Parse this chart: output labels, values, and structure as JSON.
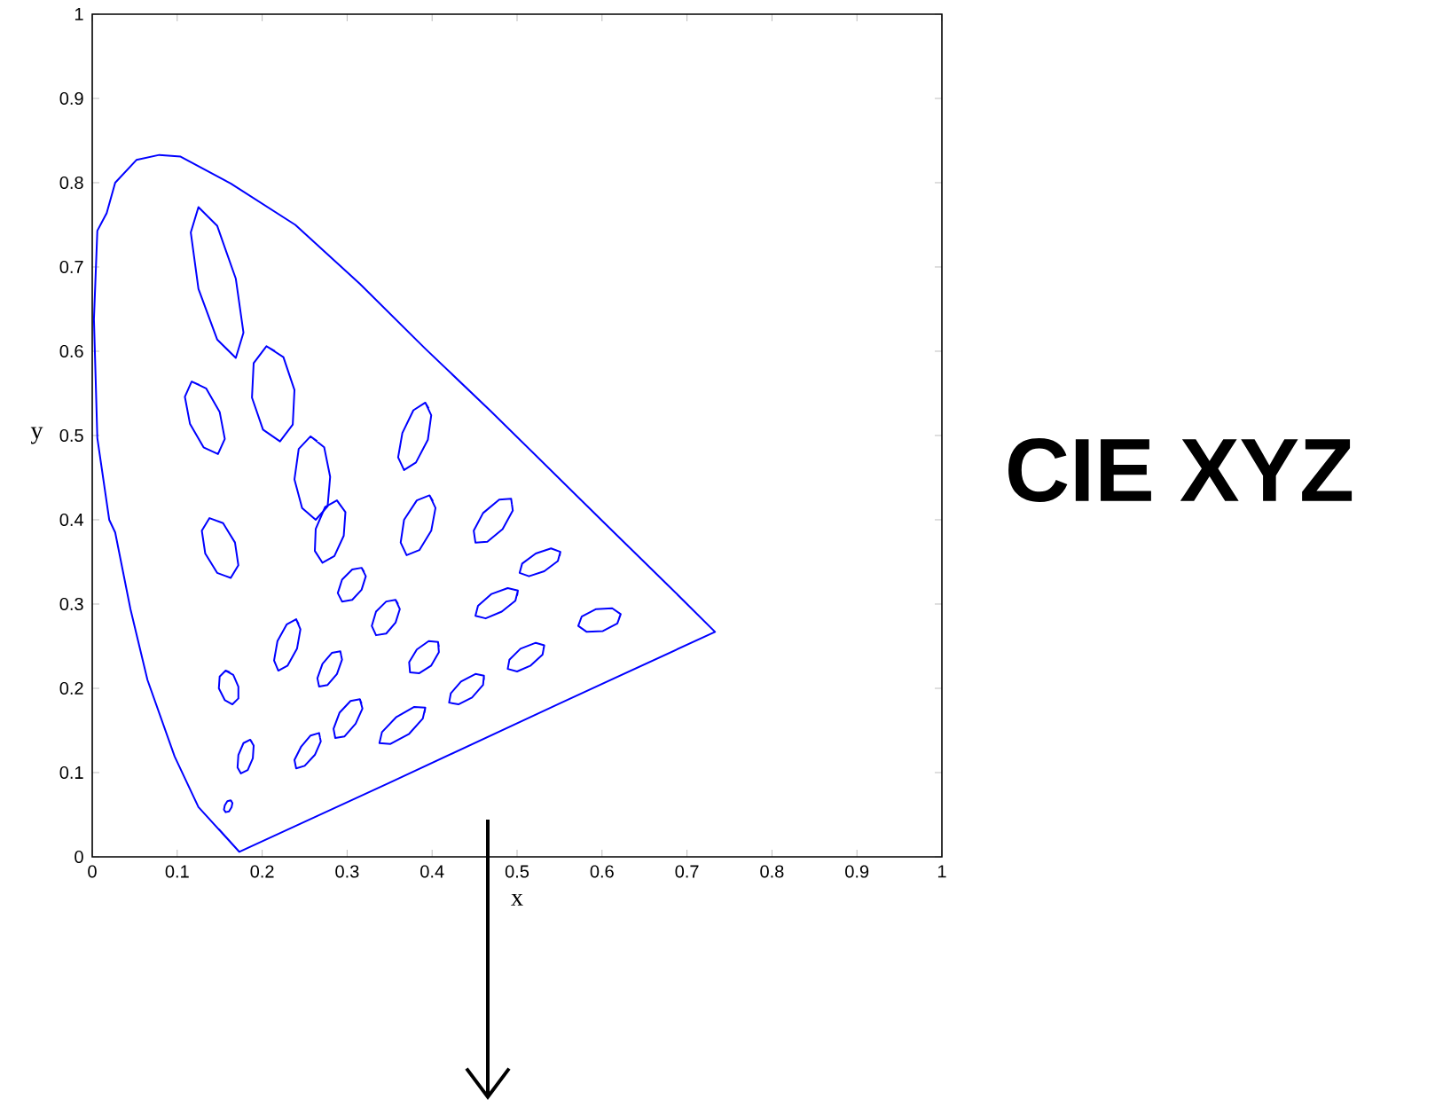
{
  "chart_data": {
    "type": "line",
    "xlabel": "x",
    "ylabel": "y",
    "annotations": [
      "CIE XYZ"
    ],
    "xlim": [
      0,
      1
    ],
    "ylim": [
      0,
      1
    ],
    "xticks": [
      0,
      0.1,
      0.2,
      0.3,
      0.4,
      0.5,
      0.6,
      0.7,
      0.8,
      0.9,
      1
    ],
    "yticks": [
      0,
      0.1,
      0.2,
      0.3,
      0.4,
      0.5,
      0.6,
      0.7,
      0.8,
      0.9,
      1
    ],
    "grid": false,
    "series": [
      {
        "color": "#0000ff",
        "x": [
          0.173,
          0.125,
          0.097,
          0.065,
          0.045,
          0.027,
          0.02,
          0.006,
          0.004,
          0.002,
          0.006,
          0.017,
          0.027,
          0.052,
          0.079,
          0.104,
          0.163,
          0.239,
          0.315,
          0.392,
          0.469,
          0.6,
          0.68,
          0.733,
          0.55,
          0.35,
          0.173,
          0.149
        ],
        "values": [
          0.006,
          0.059,
          0.119,
          0.21,
          0.294,
          0.385,
          0.4,
          0.497,
          0.568,
          0.638,
          0.743,
          0.764,
          0.8,
          0.827,
          0.833,
          0.831,
          0.799,
          0.75,
          0.68,
          0.603,
          0.529,
          0.399,
          0.32,
          0.267,
          0.182,
          0.088,
          0.006,
          0.033
        ]
      },
      {
        "color": "#0000ff",
        "x": [
          0.125,
          0.147,
          0.169,
          0.178,
          0.169,
          0.147,
          0.125,
          0.116,
          0.125,
          0.136
        ],
        "values": [
          0.771,
          0.749,
          0.686,
          0.622,
          0.592,
          0.614,
          0.674,
          0.741,
          0.771,
          0.76
        ]
      },
      {
        "color": "#0000ff",
        "x": [
          0.205,
          0.225,
          0.238,
          0.236,
          0.221,
          0.201,
          0.188,
          0.19,
          0.205,
          0.215
        ],
        "values": [
          0.606,
          0.593,
          0.554,
          0.513,
          0.493,
          0.507,
          0.545,
          0.586,
          0.606,
          0.6
        ]
      },
      {
        "color": "#0000ff",
        "x": [
          0.117,
          0.134,
          0.15,
          0.156,
          0.148,
          0.131,
          0.115,
          0.109,
          0.117,
          0.126
        ],
        "values": [
          0.564,
          0.556,
          0.528,
          0.496,
          0.478,
          0.486,
          0.514,
          0.546,
          0.564,
          0.56
        ]
      },
      {
        "color": "#0000ff",
        "x": [
          0.257,
          0.273,
          0.28,
          0.277,
          0.263,
          0.247,
          0.238,
          0.243,
          0.257,
          0.265
        ],
        "values": [
          0.499,
          0.486,
          0.451,
          0.416,
          0.4,
          0.414,
          0.448,
          0.484,
          0.499,
          0.493
        ]
      },
      {
        "color": "#0000ff",
        "x": [
          0.288,
          0.298,
          0.296,
          0.285,
          0.271,
          0.262,
          0.263,
          0.274,
          0.288,
          0.293
        ],
        "values": [
          0.423,
          0.409,
          0.381,
          0.357,
          0.349,
          0.363,
          0.389,
          0.415,
          0.423,
          0.416
        ]
      },
      {
        "color": "#0000ff",
        "x": [
          0.392,
          0.399,
          0.395,
          0.381,
          0.367,
          0.36,
          0.365,
          0.378,
          0.392,
          0.396
        ],
        "values": [
          0.539,
          0.524,
          0.495,
          0.468,
          0.459,
          0.474,
          0.503,
          0.53,
          0.539,
          0.532
        ]
      },
      {
        "color": "#0000ff",
        "x": [
          0.397,
          0.404,
          0.399,
          0.385,
          0.37,
          0.363,
          0.367,
          0.382,
          0.397,
          0.401
        ],
        "values": [
          0.429,
          0.414,
          0.387,
          0.364,
          0.358,
          0.373,
          0.4,
          0.423,
          0.429,
          0.422
        ]
      },
      {
        "color": "#0000ff",
        "x": [
          0.493,
          0.495,
          0.483,
          0.465,
          0.451,
          0.449,
          0.46,
          0.479,
          0.493,
          0.494
        ],
        "values": [
          0.425,
          0.411,
          0.389,
          0.374,
          0.373,
          0.387,
          0.408,
          0.424,
          0.425,
          0.418
        ]
      },
      {
        "color": "#0000ff",
        "x": [
          0.551,
          0.548,
          0.532,
          0.514,
          0.503,
          0.506,
          0.522,
          0.54,
          0.551,
          0.55
        ],
        "values": [
          0.362,
          0.351,
          0.339,
          0.333,
          0.337,
          0.348,
          0.36,
          0.366,
          0.362,
          0.357
        ]
      },
      {
        "color": "#0000ff",
        "x": [
          0.622,
          0.618,
          0.601,
          0.582,
          0.572,
          0.576,
          0.593,
          0.612,
          0.622,
          0.62
        ],
        "values": [
          0.288,
          0.277,
          0.268,
          0.267,
          0.274,
          0.285,
          0.294,
          0.295,
          0.288,
          0.283
        ]
      },
      {
        "color": "#0000ff",
        "x": [
          0.138,
          0.154,
          0.168,
          0.172,
          0.163,
          0.147,
          0.133,
          0.129,
          0.138,
          0.146
        ],
        "values": [
          0.402,
          0.396,
          0.373,
          0.346,
          0.331,
          0.337,
          0.36,
          0.387,
          0.402,
          0.399
        ]
      },
      {
        "color": "#0000ff",
        "x": [
          0.317,
          0.322,
          0.317,
          0.306,
          0.294,
          0.289,
          0.294,
          0.306,
          0.317,
          0.32
        ],
        "values": [
          0.343,
          0.333,
          0.317,
          0.305,
          0.303,
          0.313,
          0.329,
          0.341,
          0.343,
          0.338
        ]
      },
      {
        "color": "#0000ff",
        "x": [
          0.357,
          0.362,
          0.357,
          0.346,
          0.334,
          0.329,
          0.334,
          0.346,
          0.357,
          0.36
        ],
        "values": [
          0.305,
          0.294,
          0.278,
          0.265,
          0.263,
          0.274,
          0.291,
          0.303,
          0.305,
          0.3
        ]
      },
      {
        "color": "#0000ff",
        "x": [
          0.501,
          0.498,
          0.482,
          0.463,
          0.451,
          0.454,
          0.47,
          0.489,
          0.501,
          0.5
        ],
        "values": [
          0.316,
          0.304,
          0.291,
          0.283,
          0.286,
          0.298,
          0.312,
          0.319,
          0.316,
          0.31
        ]
      },
      {
        "color": "#0000ff",
        "x": [
          0.24,
          0.245,
          0.241,
          0.23,
          0.219,
          0.214,
          0.218,
          0.229,
          0.24,
          0.243
        ],
        "values": [
          0.282,
          0.27,
          0.247,
          0.227,
          0.221,
          0.233,
          0.256,
          0.276,
          0.282,
          0.276
        ]
      },
      {
        "color": "#0000ff",
        "x": [
          0.292,
          0.294,
          0.288,
          0.277,
          0.267,
          0.265,
          0.271,
          0.282,
          0.292,
          0.293
        ],
        "values": [
          0.244,
          0.234,
          0.217,
          0.204,
          0.202,
          0.212,
          0.229,
          0.242,
          0.244,
          0.239
        ]
      },
      {
        "color": "#0000ff",
        "x": [
          0.407,
          0.408,
          0.399,
          0.385,
          0.374,
          0.373,
          0.382,
          0.396,
          0.407,
          0.408
        ],
        "values": [
          0.255,
          0.243,
          0.227,
          0.218,
          0.219,
          0.231,
          0.246,
          0.256,
          0.255,
          0.249
        ]
      },
      {
        "color": "#0000ff",
        "x": [
          0.532,
          0.53,
          0.516,
          0.5,
          0.489,
          0.491,
          0.504,
          0.522,
          0.532,
          0.531
        ],
        "values": [
          0.251,
          0.24,
          0.227,
          0.22,
          0.223,
          0.234,
          0.247,
          0.254,
          0.251,
          0.246
        ]
      },
      {
        "color": "#0000ff",
        "x": [
          0.157,
          0.166,
          0.172,
          0.172,
          0.165,
          0.156,
          0.149,
          0.15,
          0.157,
          0.162
        ],
        "values": [
          0.221,
          0.216,
          0.202,
          0.188,
          0.181,
          0.186,
          0.2,
          0.214,
          0.221,
          0.219
        ]
      },
      {
        "color": "#0000ff",
        "x": [
          0.315,
          0.318,
          0.31,
          0.297,
          0.286,
          0.284,
          0.291,
          0.304,
          0.315,
          0.317
        ],
        "values": [
          0.187,
          0.176,
          0.158,
          0.143,
          0.141,
          0.152,
          0.171,
          0.185,
          0.187,
          0.182
        ]
      },
      {
        "color": "#0000ff",
        "x": [
          0.392,
          0.389,
          0.373,
          0.351,
          0.338,
          0.341,
          0.358,
          0.379,
          0.392,
          0.391
        ],
        "values": [
          0.177,
          0.164,
          0.146,
          0.134,
          0.135,
          0.148,
          0.166,
          0.178,
          0.177,
          0.171
        ]
      },
      {
        "color": "#0000ff",
        "x": [
          0.461,
          0.46,
          0.447,
          0.431,
          0.42,
          0.422,
          0.434,
          0.451,
          0.461,
          0.461
        ],
        "values": [
          0.215,
          0.204,
          0.189,
          0.181,
          0.183,
          0.194,
          0.208,
          0.217,
          0.215,
          0.21
        ]
      },
      {
        "color": "#0000ff",
        "x": [
          0.186,
          0.19,
          0.189,
          0.183,
          0.175,
          0.171,
          0.172,
          0.178,
          0.186,
          0.188
        ],
        "values": [
          0.139,
          0.132,
          0.117,
          0.103,
          0.099,
          0.106,
          0.121,
          0.135,
          0.139,
          0.136
        ]
      },
      {
        "color": "#0000ff",
        "x": [
          0.267,
          0.269,
          0.262,
          0.25,
          0.24,
          0.238,
          0.246,
          0.257,
          0.267,
          0.268
        ],
        "values": [
          0.147,
          0.137,
          0.121,
          0.108,
          0.105,
          0.115,
          0.131,
          0.144,
          0.147,
          0.142
        ]
      },
      {
        "color": "#0000ff",
        "x": [
          0.163,
          0.165,
          0.164,
          0.161,
          0.157,
          0.155,
          0.156,
          0.159,
          0.163,
          0.164
        ],
        "values": [
          0.067,
          0.064,
          0.059,
          0.054,
          0.053,
          0.056,
          0.061,
          0.066,
          0.067,
          0.066
        ]
      }
    ]
  }
}
